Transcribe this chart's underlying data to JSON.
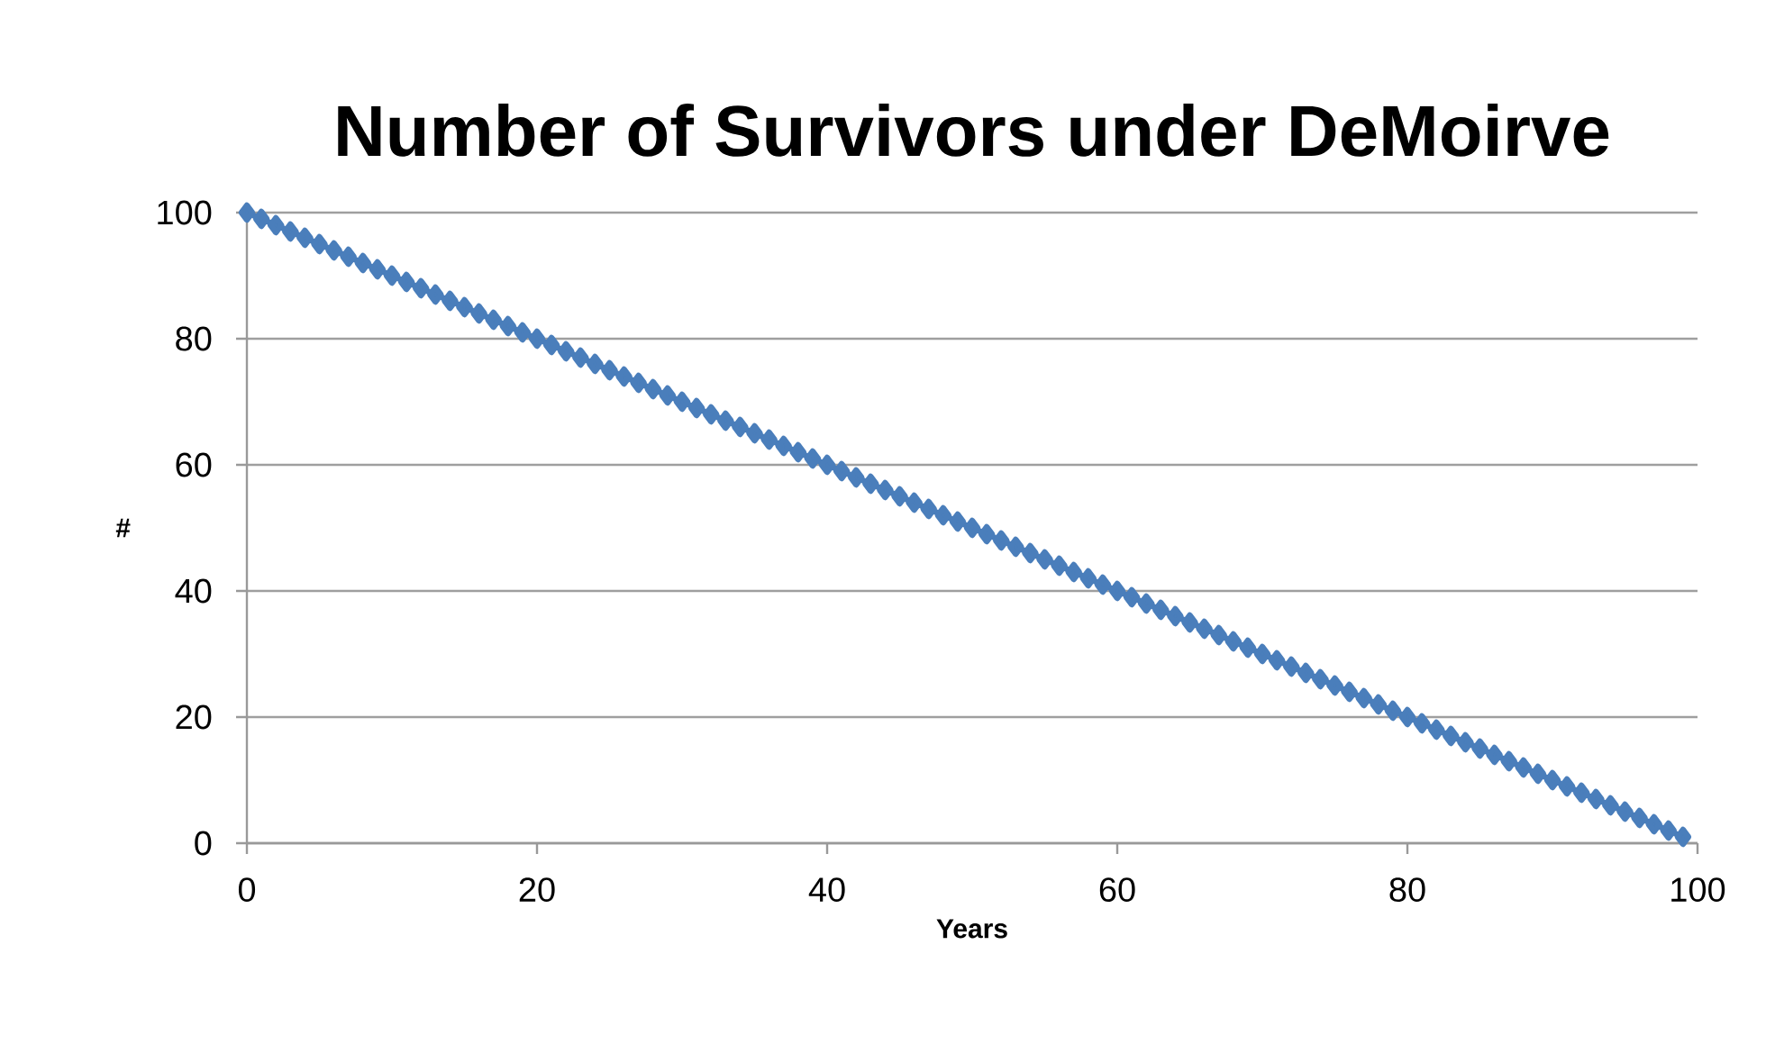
{
  "chart_data": {
    "type": "line",
    "title": "Number of Survivors under DeMoirve",
    "xlabel": "Years",
    "ylabel": "#",
    "x": [
      0,
      1,
      2,
      3,
      4,
      5,
      6,
      7,
      8,
      9,
      10,
      11,
      12,
      13,
      14,
      15,
      16,
      17,
      18,
      19,
      20,
      21,
      22,
      23,
      24,
      25,
      26,
      27,
      28,
      29,
      30,
      31,
      32,
      33,
      34,
      35,
      36,
      37,
      38,
      39,
      40,
      41,
      42,
      43,
      44,
      45,
      46,
      47,
      48,
      49,
      50,
      51,
      52,
      53,
      54,
      55,
      56,
      57,
      58,
      59,
      60,
      61,
      62,
      63,
      64,
      65,
      66,
      67,
      68,
      69,
      70,
      71,
      72,
      73,
      74,
      75,
      76,
      77,
      78,
      79,
      80,
      81,
      82,
      83,
      84,
      85,
      86,
      87,
      88,
      89,
      90,
      91,
      92,
      93,
      94,
      95,
      96,
      97,
      98,
      99
    ],
    "series": [
      {
        "color": "#4a7ebb",
        "values": [
          100,
          99,
          98,
          97,
          96,
          95,
          94,
          93,
          92,
          91,
          90,
          89,
          88,
          87,
          86,
          85,
          84,
          83,
          82,
          81,
          80,
          79,
          78,
          77,
          76,
          75,
          74,
          73,
          72,
          71,
          70,
          69,
          68,
          67,
          66,
          65,
          64,
          63,
          62,
          61,
          60,
          59,
          58,
          57,
          56,
          55,
          54,
          53,
          52,
          51,
          50,
          49,
          48,
          47,
          46,
          45,
          44,
          43,
          42,
          41,
          40,
          39,
          38,
          37,
          36,
          35,
          34,
          33,
          32,
          31,
          30,
          29,
          28,
          27,
          26,
          25,
          24,
          23,
          22,
          21,
          20,
          19,
          18,
          17,
          16,
          15,
          14,
          13,
          12,
          11,
          10,
          9,
          8,
          7,
          6,
          5,
          4,
          3,
          2,
          1
        ]
      }
    ],
    "xlim": [
      0,
      100
    ],
    "ylim": [
      0,
      100
    ],
    "xticks": [
      0,
      20,
      40,
      60,
      80,
      100
    ],
    "yticks": [
      0,
      20,
      40,
      60,
      80,
      100
    ],
    "grid": "y",
    "marker": "diamond",
    "line_style": "solid"
  }
}
